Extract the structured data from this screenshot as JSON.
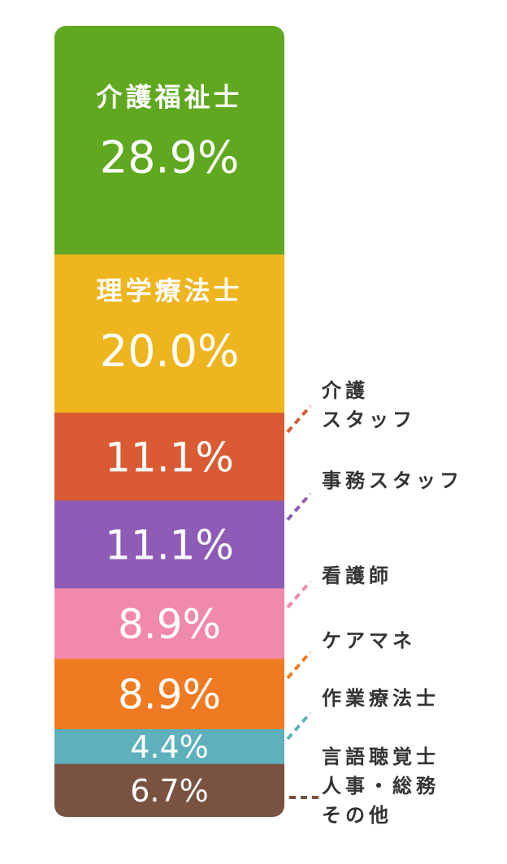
{
  "chart_data": {
    "type": "bar",
    "stacked": true,
    "unit": "%",
    "segments": [
      {
        "label": "介護福祉士",
        "value": 28.9,
        "value_label": "28.9%",
        "color": "#5FA81F",
        "label_inside": true
      },
      {
        "label": "理学療法士",
        "value": 20.0,
        "value_label": "20.0%",
        "color": "#EEB51F",
        "label_inside": true
      },
      {
        "label": "介護\nスタッフ",
        "value": 11.1,
        "value_label": "11.1%",
        "color": "#DA5A33",
        "label_inside": false
      },
      {
        "label": "事務スタッフ",
        "value": 11.1,
        "value_label": "11.1%",
        "color": "#8E5CB7",
        "label_inside": false
      },
      {
        "label": "看護師",
        "value": 8.9,
        "value_label": "8.9%",
        "color": "#F189AC",
        "label_inside": false
      },
      {
        "label": "ケアマネ",
        "value": 8.9,
        "value_label": "8.9%",
        "color": "#F07A21",
        "label_inside": false
      },
      {
        "label": "作業療法士",
        "value": 4.4,
        "value_label": "4.4%",
        "color": "#5EB0BC",
        "label_inside": false
      },
      {
        "label": "言語聴覚士\n人事・総務\nその他",
        "value": 6.7,
        "value_label": "6.7%",
        "color": "#7A5240",
        "label_inside": false
      }
    ]
  }
}
